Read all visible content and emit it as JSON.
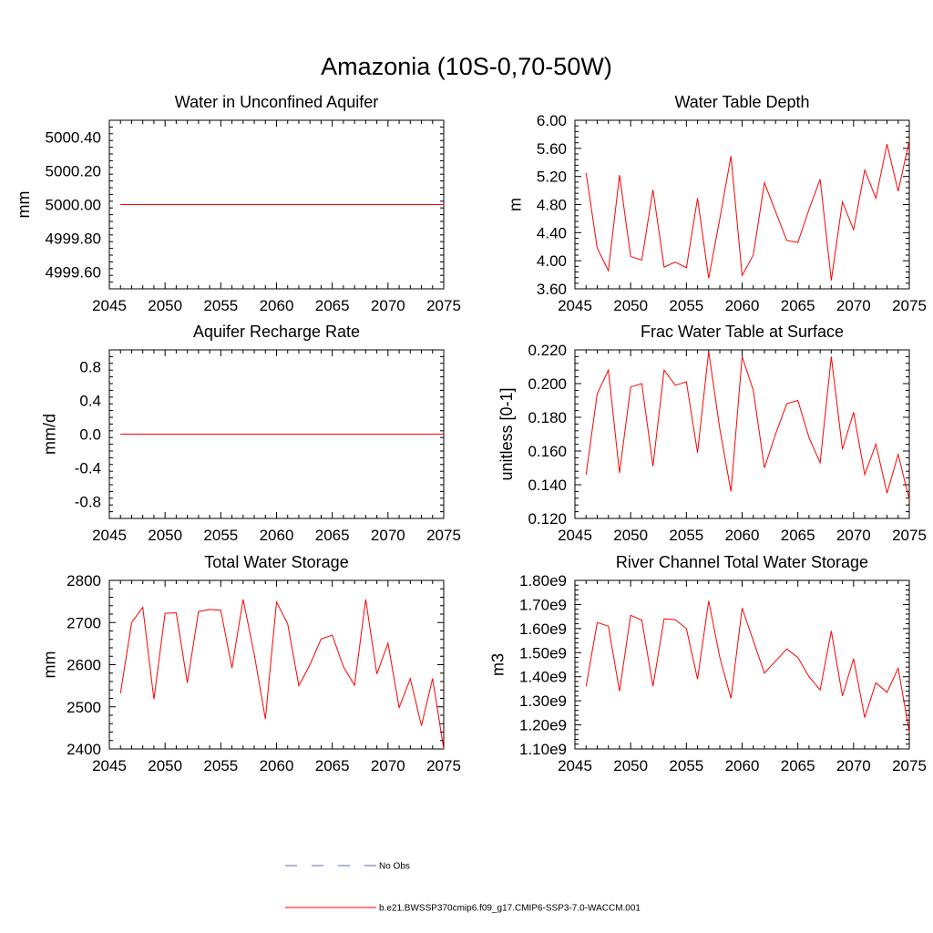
{
  "figure": {
    "title": "Amazonia (10S-0,70-50W)"
  },
  "colors": {
    "model_line": "#ff0000",
    "obs_line": "#5a6bb0",
    "axis": "#000000",
    "background": "#ffffff"
  },
  "legend": {
    "obs_label": "No Obs",
    "model_label": "b.e21.BWSSP370cmip6.f09_g17.CMIP6-SSP3-7.0-WACCM.001"
  },
  "chart_data": [
    {
      "type": "line",
      "title": "Water in Unconfined Aquifer",
      "xlabel": "",
      "ylabel": "mm",
      "xlim": [
        2045,
        2075
      ],
      "ylim": [
        4999.5,
        5000.5
      ],
      "xticks": [
        2045,
        2050,
        2055,
        2060,
        2065,
        2070,
        2075
      ],
      "yticks": [
        4999.6,
        4999.8,
        5000.0,
        5000.2,
        5000.4
      ],
      "ytick_labels": [
        "4999.60",
        "4999.80",
        "5000.00",
        "5000.20",
        "5000.40"
      ],
      "series": [
        {
          "name": "b.e21.BWSSP370cmip6.f09_g17.CMIP6-SSP3-7.0-WACCM.001",
          "x": [
            2046,
            2047,
            2048,
            2049,
            2050,
            2051,
            2052,
            2053,
            2054,
            2055,
            2056,
            2057,
            2058,
            2059,
            2060,
            2061,
            2062,
            2063,
            2064,
            2065,
            2066,
            2067,
            2068,
            2069,
            2070,
            2071,
            2072,
            2073,
            2074,
            2075
          ],
          "values": [
            5000,
            5000,
            5000,
            5000,
            5000,
            5000,
            5000,
            5000,
            5000,
            5000,
            5000,
            5000,
            5000,
            5000,
            5000,
            5000,
            5000,
            5000,
            5000,
            5000,
            5000,
            5000,
            5000,
            5000,
            5000,
            5000,
            5000,
            5000,
            5000,
            5000
          ]
        }
      ]
    },
    {
      "type": "line",
      "title": "Water Table Depth",
      "xlabel": "",
      "ylabel": "m",
      "xlim": [
        2045,
        2075
      ],
      "ylim": [
        3.6,
        6.0
      ],
      "xticks": [
        2045,
        2050,
        2055,
        2060,
        2065,
        2070,
        2075
      ],
      "yticks": [
        3.6,
        4.0,
        4.4,
        4.8,
        5.2,
        5.6,
        6.0
      ],
      "ytick_labels": [
        "3.60",
        "4.00",
        "4.40",
        "4.80",
        "5.20",
        "5.60",
        "6.00"
      ],
      "series": [
        {
          "name": "b.e21.BWSSP370cmip6.f09_g17.CMIP6-SSP3-7.0-WACCM.001",
          "x": [
            2046,
            2047,
            2048,
            2049,
            2050,
            2051,
            2052,
            2053,
            2054,
            2055,
            2056,
            2057,
            2058,
            2059,
            2060,
            2061,
            2062,
            2063,
            2064,
            2065,
            2066,
            2067,
            2068,
            2069,
            2070,
            2071,
            2072,
            2073,
            2074,
            2075
          ],
          "values": [
            5.25,
            4.18,
            3.86,
            5.22,
            4.06,
            4.01,
            5.01,
            3.91,
            3.98,
            3.9,
            4.89,
            3.75,
            4.6,
            5.49,
            3.79,
            4.08,
            5.11,
            4.7,
            4.29,
            4.26,
            4.73,
            5.16,
            3.72,
            4.84,
            4.44,
            5.29,
            4.89,
            5.66,
            4.99,
            5.71
          ]
        }
      ]
    },
    {
      "type": "line",
      "title": "Aquifer Recharge Rate",
      "xlabel": "",
      "ylabel": "mm/d",
      "xlim": [
        2045,
        2075
      ],
      "ylim": [
        -1.0,
        1.0
      ],
      "xticks": [
        2045,
        2050,
        2055,
        2060,
        2065,
        2070,
        2075
      ],
      "yticks": [
        -0.8,
        -0.4,
        0.0,
        0.4,
        0.8
      ],
      "ytick_labels": [
        "-0.8",
        "-0.4",
        "0.0",
        "0.4",
        "0.8"
      ],
      "series": [
        {
          "name": "b.e21.BWSSP370cmip6.f09_g17.CMIP6-SSP3-7.0-WACCM.001",
          "x": [
            2046,
            2047,
            2048,
            2049,
            2050,
            2051,
            2052,
            2053,
            2054,
            2055,
            2056,
            2057,
            2058,
            2059,
            2060,
            2061,
            2062,
            2063,
            2064,
            2065,
            2066,
            2067,
            2068,
            2069,
            2070,
            2071,
            2072,
            2073,
            2074,
            2075
          ],
          "values": [
            0,
            0,
            0,
            0,
            0,
            0,
            0,
            0,
            0,
            0,
            0,
            0,
            0,
            0,
            0,
            0,
            0,
            0,
            0,
            0,
            0,
            0,
            0,
            0,
            0,
            0,
            0,
            0,
            0,
            0
          ]
        }
      ]
    },
    {
      "type": "line",
      "title": "Frac Water Table at Surface",
      "xlabel": "",
      "ylabel": "unitless [0-1]",
      "xlim": [
        2045,
        2075
      ],
      "ylim": [
        0.12,
        0.22
      ],
      "xticks": [
        2045,
        2050,
        2055,
        2060,
        2065,
        2070,
        2075
      ],
      "yticks": [
        0.12,
        0.14,
        0.16,
        0.18,
        0.2,
        0.22
      ],
      "ytick_labels": [
        "0.120",
        "0.140",
        "0.160",
        "0.180",
        "0.200",
        "0.220"
      ],
      "series": [
        {
          "name": "b.e21.BWSSP370cmip6.f09_g17.CMIP6-SSP3-7.0-WACCM.001",
          "x": [
            2046,
            2047,
            2048,
            2049,
            2050,
            2051,
            2052,
            2053,
            2054,
            2055,
            2056,
            2057,
            2058,
            2059,
            2060,
            2061,
            2062,
            2063,
            2064,
            2065,
            2066,
            2067,
            2068,
            2069,
            2070,
            2071,
            2072,
            2073,
            2074,
            2075
          ],
          "values": [
            0.146,
            0.194,
            0.208,
            0.147,
            0.198,
            0.2,
            0.151,
            0.208,
            0.199,
            0.201,
            0.159,
            0.219,
            0.173,
            0.136,
            0.216,
            0.196,
            0.15,
            0.17,
            0.188,
            0.19,
            0.168,
            0.153,
            0.216,
            0.161,
            0.183,
            0.146,
            0.164,
            0.135,
            0.158,
            0.131
          ]
        }
      ]
    },
    {
      "type": "line",
      "title": "Total Water Storage",
      "xlabel": "",
      "ylabel": "mm",
      "xlim": [
        2045,
        2075
      ],
      "ylim": [
        2400,
        2800
      ],
      "xticks": [
        2045,
        2050,
        2055,
        2060,
        2065,
        2070,
        2075
      ],
      "yticks": [
        2400,
        2500,
        2600,
        2700,
        2800
      ],
      "ytick_labels": [
        "2400",
        "2500",
        "2600",
        "2700",
        "2800"
      ],
      "series": [
        {
          "name": "b.e21.BWSSP370cmip6.f09_g17.CMIP6-SSP3-7.0-WACCM.001",
          "x": [
            2046,
            2047,
            2048,
            2049,
            2050,
            2051,
            2052,
            2053,
            2054,
            2055,
            2056,
            2057,
            2058,
            2059,
            2060,
            2061,
            2062,
            2063,
            2064,
            2065,
            2066,
            2067,
            2068,
            2069,
            2070,
            2071,
            2072,
            2073,
            2074,
            2075
          ],
          "values": [
            2532,
            2700,
            2736,
            2518,
            2722,
            2723,
            2557,
            2726,
            2731,
            2729,
            2592,
            2755,
            2625,
            2471,
            2749,
            2697,
            2550,
            2600,
            2661,
            2670,
            2595,
            2551,
            2755,
            2578,
            2651,
            2498,
            2567,
            2455,
            2567,
            2400
          ]
        }
      ]
    },
    {
      "type": "line",
      "title": "River Channel Total Water Storage",
      "xlabel": "",
      "ylabel": "m3",
      "xlim": [
        2045,
        2075
      ],
      "ylim": [
        1100000000.0,
        1800000000.0
      ],
      "xticks": [
        2045,
        2050,
        2055,
        2060,
        2065,
        2070,
        2075
      ],
      "yticks": [
        1100000000.0,
        1200000000.0,
        1300000000.0,
        1400000000.0,
        1500000000.0,
        1600000000.0,
        1700000000.0,
        1800000000.0
      ],
      "ytick_labels": [
        "1.10e9",
        "1.20e9",
        "1.30e9",
        "1.40e9",
        "1.50e9",
        "1.60e9",
        "1.70e9",
        "1.80e9"
      ],
      "series": [
        {
          "name": "b.e21.BWSSP370cmip6.f09_g17.CMIP6-SSP3-7.0-WACCM.001",
          "x": [
            2046,
            2047,
            2048,
            2049,
            2050,
            2051,
            2052,
            2053,
            2054,
            2055,
            2056,
            2057,
            2058,
            2059,
            2060,
            2061,
            2062,
            2063,
            2064,
            2065,
            2066,
            2067,
            2068,
            2069,
            2070,
            2071,
            2072,
            2073,
            2074,
            2075
          ],
          "values": [
            1360000000.0,
            1625000000.0,
            1610000000.0,
            1340000000.0,
            1655000000.0,
            1635000000.0,
            1360000000.0,
            1640000000.0,
            1637000000.0,
            1600000000.0,
            1390000000.0,
            1715000000.0,
            1480000000.0,
            1310000000.0,
            1685000000.0,
            1550000000.0,
            1415000000.0,
            1465000000.0,
            1515000000.0,
            1480000000.0,
            1400000000.0,
            1345000000.0,
            1590000000.0,
            1320000000.0,
            1475000000.0,
            1230000000.0,
            1375000000.0,
            1335000000.0,
            1435000000.0,
            1170000000.0
          ]
        }
      ]
    }
  ]
}
